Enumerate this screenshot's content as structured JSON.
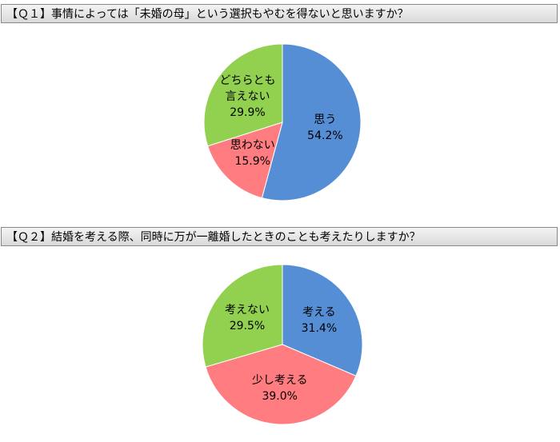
{
  "chart_data": [
    {
      "type": "pie",
      "title": "【Ｑ１】事情によっては「未婚の母」という選択もやむを得ないと思いますか？",
      "categories": [
        "思う",
        "思わない",
        "どちらとも\n言えない"
      ],
      "values": [
        54.2,
        15.9,
        29.9
      ],
      "value_labels": [
        "54.2%",
        "15.9%",
        "29.9%"
      ],
      "colors": [
        "#558ed5",
        "#ff7c80",
        "#92d050"
      ]
    },
    {
      "type": "pie",
      "title": "【Ｑ２】結婚を考える際、同時に万が一離婚したときのことも考えたりしますか？",
      "categories": [
        "考える",
        "少し考える",
        "考えない"
      ],
      "values": [
        31.4,
        39.0,
        29.5
      ],
      "value_labels": [
        "31.4%",
        "39.0%",
        "29.5%"
      ],
      "colors": [
        "#558ed5",
        "#ff7c80",
        "#92d050"
      ]
    }
  ]
}
